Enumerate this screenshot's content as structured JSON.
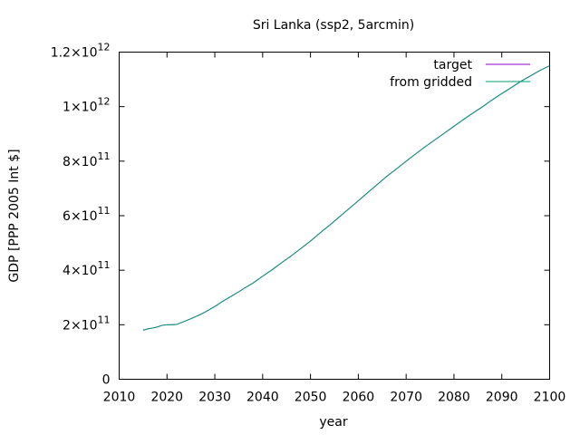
{
  "chart_data": {
    "type": "line",
    "title": "Sri Lanka (ssp2, 5arcmin)",
    "xlabel": "year",
    "ylabel": "GDP [PPP 2005 Int $]",
    "xlim": [
      2010,
      2100
    ],
    "ylim": [
      0,
      1200000000000.0
    ],
    "xticks": [
      2010,
      2020,
      2030,
      2040,
      2050,
      2060,
      2070,
      2080,
      2090,
      2100
    ],
    "yticks": [
      0,
      200000000000.0,
      400000000000.0,
      600000000000.0,
      800000000000.0,
      1000000000000.0,
      1200000000000.0
    ],
    "ytick_labels": [
      {
        "mantissa": "0",
        "exponent": ""
      },
      {
        "mantissa": "2×10",
        "exponent": "11"
      },
      {
        "mantissa": "4×10",
        "exponent": "11"
      },
      {
        "mantissa": "6×10",
        "exponent": "11"
      },
      {
        "mantissa": "8×10",
        "exponent": "11"
      },
      {
        "mantissa": "1×10",
        "exponent": "12"
      },
      {
        "mantissa": "1.2×10",
        "exponent": "12"
      }
    ],
    "grid": false,
    "legend_position": "top-right",
    "series": [
      {
        "name": "target",
        "color": "#9400d3",
        "x": [
          2015,
          2016,
          2017,
          2018,
          2019,
          2020,
          2021,
          2022,
          2023,
          2024,
          2025,
          2026,
          2027,
          2028,
          2029,
          2030,
          2032,
          2034,
          2036,
          2038,
          2040,
          2042,
          2044,
          2046,
          2048,
          2050,
          2052,
          2054,
          2056,
          2058,
          2060,
          2062,
          2064,
          2066,
          2068,
          2070,
          2072,
          2074,
          2076,
          2078,
          2080,
          2082,
          2084,
          2086,
          2088,
          2090,
          2092,
          2094,
          2096,
          2098,
          2100
        ],
        "values": [
          180000000000.0,
          185000000000.0,
          188000000000.0,
          192000000000.0,
          198000000000.0,
          200000000000.0,
          200000000000.0,
          201000000000.0,
          208000000000.0,
          215000000000.0,
          222000000000.0,
          230000000000.0,
          238000000000.0,
          247000000000.0,
          257000000000.0,
          267000000000.0,
          290000000000.0,
          310000000000.0,
          332000000000.0,
          353000000000.0,
          378000000000.0,
          402000000000.0,
          428000000000.0,
          453000000000.0,
          480000000000.0,
          507000000000.0,
          537000000000.0,
          565000000000.0,
          595000000000.0,
          625000000000.0,
          655000000000.0,
          685000000000.0,
          715000000000.0,
          745000000000.0,
          772000000000.0,
          800000000000.0,
          827000000000.0,
          853000000000.0,
          878000000000.0,
          903000000000.0,
          928000000000.0,
          953000000000.0,
          977000000000.0,
          1000000000000.0,
          1025000000000.0,
          1048000000000.0,
          1070000000000.0,
          1093000000000.0,
          1113000000000.0,
          1133000000000.0,
          1150000000000.0
        ]
      },
      {
        "name": "from gridded",
        "color": "#009e73",
        "x": [
          2015,
          2016,
          2017,
          2018,
          2019,
          2020,
          2021,
          2022,
          2023,
          2024,
          2025,
          2026,
          2027,
          2028,
          2029,
          2030,
          2032,
          2034,
          2036,
          2038,
          2040,
          2042,
          2044,
          2046,
          2048,
          2050,
          2052,
          2054,
          2056,
          2058,
          2060,
          2062,
          2064,
          2066,
          2068,
          2070,
          2072,
          2074,
          2076,
          2078,
          2080,
          2082,
          2084,
          2086,
          2088,
          2090,
          2092,
          2094,
          2096,
          2098,
          2100
        ],
        "values": [
          180000000000.0,
          185000000000.0,
          188000000000.0,
          192000000000.0,
          198000000000.0,
          200000000000.0,
          200000000000.0,
          201000000000.0,
          208000000000.0,
          215000000000.0,
          222000000000.0,
          230000000000.0,
          238000000000.0,
          247000000000.0,
          257000000000.0,
          267000000000.0,
          290000000000.0,
          310000000000.0,
          332000000000.0,
          353000000000.0,
          378000000000.0,
          402000000000.0,
          428000000000.0,
          453000000000.0,
          480000000000.0,
          507000000000.0,
          537000000000.0,
          565000000000.0,
          595000000000.0,
          625000000000.0,
          655000000000.0,
          685000000000.0,
          715000000000.0,
          745000000000.0,
          772000000000.0,
          800000000000.0,
          827000000000.0,
          853000000000.0,
          878000000000.0,
          903000000000.0,
          928000000000.0,
          953000000000.0,
          977000000000.0,
          1000000000000.0,
          1025000000000.0,
          1048000000000.0,
          1070000000000.0,
          1093000000000.0,
          1113000000000.0,
          1133000000000.0,
          1150000000000.0
        ]
      }
    ]
  }
}
